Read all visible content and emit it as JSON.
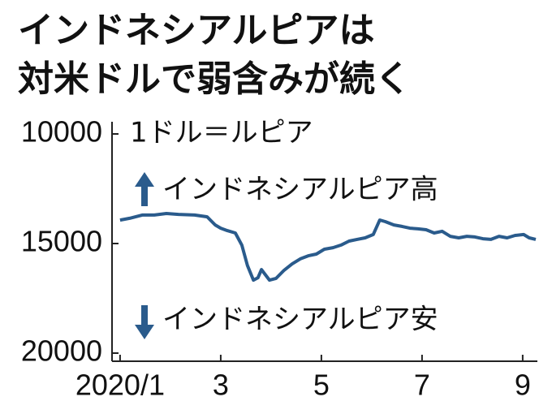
{
  "chart_data": {
    "type": "line",
    "title": "インドネシアルピアは",
    "subtitle": "対米ドルで弱含みが続く",
    "unit_label": "1ドル＝ルピア",
    "annotation_up": "インドネシアルピア高",
    "annotation_down": "インドネシアルピア安",
    "x": [
      1.0,
      1.19,
      1.44,
      1.68,
      1.92,
      2.16,
      2.48,
      2.73,
      2.89,
      3.0,
      3.13,
      3.29,
      3.42,
      3.53,
      3.65,
      3.74,
      3.81,
      3.87,
      3.97,
      4.1,
      4.26,
      4.42,
      4.58,
      4.74,
      4.9,
      5.06,
      5.23,
      5.39,
      5.55,
      5.71,
      5.87,
      6.03,
      6.16,
      6.27,
      6.44,
      6.6,
      6.76,
      6.92,
      7.08,
      7.24,
      7.4,
      7.56,
      7.73,
      7.89,
      8.05,
      8.21,
      8.37,
      8.53,
      8.69,
      8.85,
      9.02,
      9.13,
      9.26
    ],
    "series": [
      {
        "name": "1ドル＝ルピア",
        "color": "#2a5b8c",
        "values": [
          13930,
          13850,
          13700,
          13700,
          13630,
          13670,
          13700,
          13780,
          14150,
          14300,
          14410,
          14520,
          15070,
          16000,
          16670,
          16560,
          16190,
          16370,
          16670,
          16590,
          16220,
          15930,
          15700,
          15560,
          15480,
          15260,
          15190,
          15070,
          14890,
          14810,
          14740,
          14590,
          13930,
          14000,
          14150,
          14220,
          14300,
          14330,
          14370,
          14520,
          14440,
          14670,
          14740,
          14670,
          14700,
          14780,
          14810,
          14670,
          14740,
          14630,
          14590,
          14740,
          14810
        ]
      }
    ],
    "xlim": [
      0.84,
      9.26
    ],
    "xticks": [
      {
        "value": 1,
        "label": "2020/1"
      },
      3,
      5,
      7,
      9
    ],
    "ylim": [
      20000,
      10000
    ],
    "yticks": [
      10000,
      15000,
      20000
    ],
    "grid": false
  }
}
